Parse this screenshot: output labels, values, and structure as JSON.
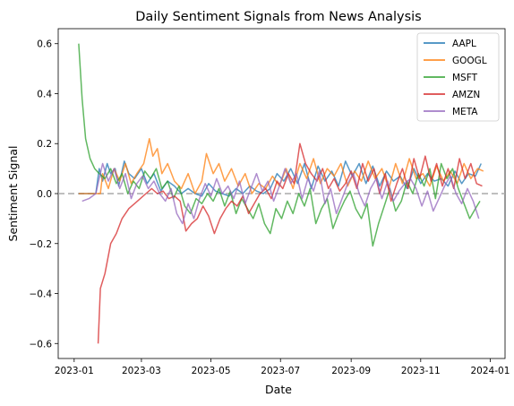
{
  "chart_data": {
    "type": "line",
    "title": "Daily Sentiment Signals from News Analysis",
    "xlabel": "Date",
    "ylabel": "Sentiment Signal",
    "x_ticks": [
      "2023-01",
      "2023-03",
      "2023-05",
      "2023-07",
      "2023-09",
      "2023-11",
      "2024-01"
    ],
    "y_ticks": [
      "0.6",
      "0.4",
      "0.2",
      "0.0",
      "−0.2",
      "−0.4",
      "−0.6"
    ],
    "xlim": [
      "2022-12-18",
      "2024-01-14"
    ],
    "ylim": [
      -0.66,
      0.66
    ],
    "grid": false,
    "legend_position": "top-right",
    "reference_line": {
      "y": 0,
      "style": "dashed",
      "color": "#aaaaaa"
    },
    "series": [
      {
        "name": "AAPL",
        "color": "#1f77b4",
        "x": [
          "2023-01-05",
          "2023-01-20",
          "2023-01-23",
          "2023-01-26",
          "2023-01-30",
          "2023-02-02",
          "2023-02-06",
          "2023-02-09",
          "2023-02-14",
          "2023-02-18",
          "2023-02-23",
          "2023-03-01",
          "2023-03-06",
          "2023-03-12",
          "2023-03-18",
          "2023-03-24",
          "2023-03-30",
          "2023-04-05",
          "2023-04-11",
          "2023-04-17",
          "2023-04-23",
          "2023-04-29",
          "2023-05-05",
          "2023-05-11",
          "2023-05-17",
          "2023-05-23",
          "2023-05-29",
          "2023-06-04",
          "2023-06-10",
          "2023-06-16",
          "2023-06-22",
          "2023-06-28",
          "2023-07-04",
          "2023-07-10",
          "2023-07-16",
          "2023-07-22",
          "2023-07-28",
          "2023-08-03",
          "2023-08-09",
          "2023-08-15",
          "2023-08-21",
          "2023-08-27",
          "2023-09-02",
          "2023-09-08",
          "2023-09-14",
          "2023-09-20",
          "2023-09-26",
          "2023-10-02",
          "2023-10-08",
          "2023-10-14",
          "2023-10-20",
          "2023-10-26",
          "2023-11-01",
          "2023-11-07",
          "2023-11-13",
          "2023-11-19",
          "2023-11-25",
          "2023-12-01",
          "2023-12-07",
          "2023-12-13",
          "2023-12-19",
          "2023-12-24"
        ],
        "values": [
          0.0,
          0.0,
          0.1,
          0.05,
          0.12,
          0.08,
          0.1,
          0.03,
          0.13,
          0.08,
          0.06,
          0.1,
          0.04,
          0.08,
          0.01,
          0.05,
          0.03,
          0.0,
          0.02,
          0.0,
          -0.01,
          0.04,
          0.01,
          0.0,
          -0.01,
          0.02,
          0.0,
          0.03,
          0.01,
          0.0,
          0.02,
          0.08,
          0.05,
          0.1,
          0.04,
          0.12,
          0.02,
          0.11,
          0.05,
          0.09,
          0.03,
          0.13,
          0.07,
          0.12,
          0.04,
          0.11,
          0.03,
          0.09,
          0.05,
          0.07,
          0.02,
          0.1,
          0.04,
          0.08,
          0.05,
          0.06,
          0.03,
          0.09,
          0.04,
          0.08,
          0.07,
          0.12
        ]
      },
      {
        "name": "GOOGL",
        "color": "#ff7f0e",
        "x": [
          "2023-01-05",
          "2023-01-24",
          "2023-01-26",
          "2023-01-31",
          "2023-02-05",
          "2023-02-10",
          "2023-02-15",
          "2023-02-20",
          "2023-02-25",
          "2023-03-03",
          "2023-03-08",
          "2023-03-11",
          "2023-03-15",
          "2023-03-19",
          "2023-03-24",
          "2023-03-30",
          "2023-04-05",
          "2023-04-11",
          "2023-04-17",
          "2023-04-23",
          "2023-04-27",
          "2023-05-03",
          "2023-05-08",
          "2023-05-13",
          "2023-05-19",
          "2023-05-25",
          "2023-05-31",
          "2023-06-06",
          "2023-06-12",
          "2023-06-18",
          "2023-06-24",
          "2023-06-30",
          "2023-07-06",
          "2023-07-12",
          "2023-07-18",
          "2023-07-24",
          "2023-07-30",
          "2023-08-05",
          "2023-08-11",
          "2023-08-17",
          "2023-08-23",
          "2023-08-29",
          "2023-09-04",
          "2023-09-10",
          "2023-09-16",
          "2023-09-22",
          "2023-09-28",
          "2023-10-04",
          "2023-10-10",
          "2023-10-16",
          "2023-10-22",
          "2023-10-28",
          "2023-11-03",
          "2023-11-09",
          "2023-11-15",
          "2023-11-21",
          "2023-11-27",
          "2023-12-03",
          "2023-12-09",
          "2023-12-15",
          "2023-12-21",
          "2023-12-26"
        ],
        "values": [
          0.0,
          0.0,
          0.08,
          0.02,
          0.1,
          0.05,
          0.12,
          0.04,
          0.08,
          0.12,
          0.22,
          0.15,
          0.18,
          0.08,
          0.12,
          0.05,
          0.02,
          0.08,
          0.0,
          0.05,
          0.16,
          0.08,
          0.12,
          0.05,
          0.1,
          0.03,
          0.08,
          0.0,
          0.04,
          0.02,
          0.07,
          0.03,
          0.1,
          0.02,
          0.12,
          0.06,
          0.14,
          0.04,
          0.1,
          0.07,
          0.12,
          0.03,
          0.09,
          0.05,
          0.13,
          0.06,
          0.1,
          0.02,
          0.12,
          0.04,
          0.14,
          0.06,
          0.08,
          0.03,
          0.11,
          0.05,
          0.09,
          0.04,
          0.12,
          0.06,
          0.1,
          0.09
        ]
      },
      {
        "name": "MSFT",
        "color": "#2ca02c",
        "x": [
          "2023-01-05",
          "2023-01-08",
          "2023-01-11",
          "2023-01-15",
          "2023-01-19",
          "2023-01-23",
          "2023-01-28",
          "2023-02-02",
          "2023-02-07",
          "2023-02-12",
          "2023-02-17",
          "2023-02-22",
          "2023-02-27",
          "2023-03-04",
          "2023-03-09",
          "2023-03-14",
          "2023-03-19",
          "2023-03-24",
          "2023-03-29",
          "2023-04-03",
          "2023-04-08",
          "2023-04-13",
          "2023-04-18",
          "2023-04-23",
          "2023-04-28",
          "2023-05-03",
          "2023-05-08",
          "2023-05-13",
          "2023-05-18",
          "2023-05-23",
          "2023-05-28",
          "2023-06-02",
          "2023-06-07",
          "2023-06-12",
          "2023-06-17",
          "2023-06-22",
          "2023-06-27",
          "2023-07-02",
          "2023-07-07",
          "2023-07-12",
          "2023-07-17",
          "2023-07-22",
          "2023-07-27",
          "2023-08-01",
          "2023-08-06",
          "2023-08-11",
          "2023-08-16",
          "2023-08-21",
          "2023-08-26",
          "2023-08-31",
          "2023-09-05",
          "2023-09-10",
          "2023-09-15",
          "2023-09-20",
          "2023-09-25",
          "2023-09-30",
          "2023-10-05",
          "2023-10-10",
          "2023-10-15",
          "2023-10-20",
          "2023-10-25",
          "2023-10-30",
          "2023-11-04",
          "2023-11-09",
          "2023-11-14",
          "2023-11-19",
          "2023-11-24",
          "2023-11-29",
          "2023-12-04",
          "2023-12-09",
          "2023-12-14",
          "2023-12-19",
          "2023-12-23"
        ],
        "values": [
          0.6,
          0.38,
          0.22,
          0.14,
          0.1,
          0.08,
          0.06,
          0.1,
          0.04,
          0.08,
          0.0,
          0.05,
          0.02,
          0.09,
          0.06,
          0.1,
          0.02,
          0.05,
          -0.02,
          0.03,
          -0.05,
          -0.08,
          -0.02,
          -0.04,
          0.0,
          -0.03,
          0.02,
          -0.05,
          0.01,
          -0.08,
          -0.02,
          -0.06,
          -0.1,
          -0.04,
          -0.12,
          -0.16,
          -0.06,
          -0.1,
          -0.03,
          -0.08,
          0.0,
          -0.05,
          0.02,
          -0.12,
          -0.06,
          -0.02,
          -0.14,
          -0.08,
          -0.03,
          0.01,
          -0.06,
          -0.1,
          -0.04,
          -0.21,
          -0.12,
          -0.05,
          0.02,
          -0.07,
          -0.03,
          0.05,
          0.0,
          0.08,
          0.03,
          0.1,
          -0.02,
          0.12,
          0.06,
          0.1,
          0.02,
          -0.04,
          -0.1,
          -0.06,
          -0.03
        ]
      },
      {
        "name": "AMZN",
        "color": "#d62728",
        "x": [
          "2023-01-22",
          "2023-01-24",
          "2023-01-28",
          "2023-02-02",
          "2023-02-07",
          "2023-02-12",
          "2023-02-18",
          "2023-02-23",
          "2023-02-28",
          "2023-03-05",
          "2023-03-10",
          "2023-03-15",
          "2023-03-20",
          "2023-03-25",
          "2023-03-30",
          "2023-04-04",
          "2023-04-09",
          "2023-04-14",
          "2023-04-19",
          "2023-04-24",
          "2023-04-29",
          "2023-05-04",
          "2023-05-09",
          "2023-05-14",
          "2023-05-19",
          "2023-05-24",
          "2023-05-29",
          "2023-06-03",
          "2023-06-08",
          "2023-06-13",
          "2023-06-18",
          "2023-06-23",
          "2023-06-28",
          "2023-07-03",
          "2023-07-08",
          "2023-07-13",
          "2023-07-18",
          "2023-07-23",
          "2023-07-28",
          "2023-08-02",
          "2023-08-07",
          "2023-08-12",
          "2023-08-17",
          "2023-08-22",
          "2023-08-27",
          "2023-09-01",
          "2023-09-06",
          "2023-09-11",
          "2023-09-16",
          "2023-09-21",
          "2023-09-26",
          "2023-10-01",
          "2023-10-06",
          "2023-10-11",
          "2023-10-16",
          "2023-10-21",
          "2023-10-26",
          "2023-10-31",
          "2023-11-05",
          "2023-11-10",
          "2023-11-15",
          "2023-11-20",
          "2023-11-25",
          "2023-11-30",
          "2023-12-05",
          "2023-12-10",
          "2023-12-15",
          "2023-12-20",
          "2023-12-25"
        ],
        "values": [
          -0.6,
          -0.38,
          -0.32,
          -0.2,
          -0.16,
          -0.1,
          -0.06,
          -0.04,
          -0.02,
          0.0,
          0.02,
          0.0,
          0.01,
          -0.02,
          -0.01,
          -0.03,
          -0.15,
          -0.12,
          -0.1,
          -0.05,
          -0.09,
          -0.16,
          -0.1,
          -0.06,
          -0.03,
          -0.05,
          -0.01,
          -0.08,
          -0.04,
          0.0,
          0.02,
          -0.02,
          0.05,
          0.02,
          0.08,
          0.04,
          0.2,
          0.12,
          0.08,
          0.05,
          0.1,
          0.02,
          0.06,
          0.01,
          0.04,
          0.09,
          0.02,
          0.12,
          0.05,
          0.1,
          0.0,
          0.08,
          -0.03,
          0.04,
          0.1,
          0.02,
          0.14,
          0.06,
          0.15,
          0.05,
          0.12,
          0.03,
          0.1,
          0.02,
          0.14,
          0.06,
          0.12,
          0.04,
          0.03
        ]
      },
      {
        "name": "META",
        "color": "#9467bd",
        "x": [
          "2023-01-08",
          "2023-01-14",
          "2023-01-20",
          "2023-01-26",
          "2023-01-31",
          "2023-02-05",
          "2023-02-10",
          "2023-02-15",
          "2023-02-20",
          "2023-02-25",
          "2023-03-02",
          "2023-03-07",
          "2023-03-12",
          "2023-03-17",
          "2023-03-22",
          "2023-03-27",
          "2023-04-01",
          "2023-04-06",
          "2023-04-11",
          "2023-04-16",
          "2023-04-21",
          "2023-04-26",
          "2023-05-01",
          "2023-05-06",
          "2023-05-11",
          "2023-05-16",
          "2023-05-21",
          "2023-05-26",
          "2023-05-31",
          "2023-06-05",
          "2023-06-10",
          "2023-06-15",
          "2023-06-20",
          "2023-06-25",
          "2023-06-30",
          "2023-07-05",
          "2023-07-10",
          "2023-07-15",
          "2023-07-20",
          "2023-07-25",
          "2023-07-30",
          "2023-08-04",
          "2023-08-09",
          "2023-08-14",
          "2023-08-19",
          "2023-08-24",
          "2023-08-29",
          "2023-09-03",
          "2023-09-08",
          "2023-09-13",
          "2023-09-18",
          "2023-09-23",
          "2023-09-28",
          "2023-10-03",
          "2023-10-08",
          "2023-10-13",
          "2023-10-18",
          "2023-10-23",
          "2023-10-28",
          "2023-11-02",
          "2023-11-07",
          "2023-11-12",
          "2023-11-17",
          "2023-11-22",
          "2023-11-27",
          "2023-12-02",
          "2023-12-07",
          "2023-12-12",
          "2023-12-17",
          "2023-12-22"
        ],
        "values": [
          -0.03,
          -0.02,
          0.0,
          0.12,
          0.05,
          0.1,
          0.02,
          0.08,
          -0.02,
          0.04,
          0.07,
          0.02,
          0.05,
          0.0,
          -0.03,
          0.02,
          -0.08,
          -0.12,
          -0.04,
          -0.1,
          -0.02,
          0.04,
          -0.01,
          0.06,
          0.0,
          0.03,
          -0.02,
          0.05,
          -0.04,
          0.02,
          0.08,
          0.01,
          0.05,
          -0.03,
          0.03,
          0.1,
          0.04,
          0.08,
          -0.02,
          0.06,
          0.01,
          0.09,
          -0.04,
          0.02,
          -0.08,
          -0.02,
          0.04,
          0.08,
          0.0,
          -0.05,
          0.02,
          0.06,
          -0.02,
          0.05,
          -0.03,
          0.01,
          0.04,
          0.06,
          0.02,
          -0.05,
          0.01,
          -0.07,
          -0.02,
          0.03,
          0.07,
          0.0,
          -0.04,
          0.02,
          -0.03,
          -0.1
        ]
      }
    ]
  }
}
